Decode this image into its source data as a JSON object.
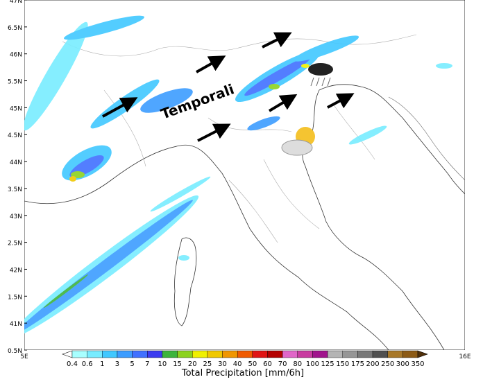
{
  "map": {
    "lat_labels": [
      "47N",
      "6.5N",
      "46N",
      "5.5N",
      "45N",
      "4.5N",
      "44N",
      "3.5N",
      "43N",
      "2.5N",
      "42N",
      "1.5N",
      "41N",
      "0.5N"
    ],
    "lon_labels": [
      "5E",
      "16E"
    ],
    "annotation": "Temporali",
    "colorbar": {
      "title": "Total Precipitation [mm/6h]",
      "labels": [
        "0.4",
        "0.6",
        "1",
        "3",
        "5",
        "7",
        "10",
        "15",
        "20",
        "25",
        "30",
        "40",
        "50",
        "60",
        "70",
        "80",
        "100",
        "125",
        "150",
        "175",
        "200",
        "250",
        "300",
        "350"
      ],
      "colors": [
        "#ffffff",
        "#a8ffff",
        "#78ecff",
        "#40c8ff",
        "#3c9cff",
        "#4070ff",
        "#3c3cf0",
        "#3cb43c",
        "#8cd21e",
        "#f0f000",
        "#f0c800",
        "#f09600",
        "#f05a00",
        "#e01414",
        "#b40000",
        "#e066c8",
        "#c83ca0",
        "#a0148c",
        "#b4b4b4",
        "#969696",
        "#787878",
        "#505050",
        "#a87828",
        "#8c5a14",
        "#6e420a",
        "#50300a"
      ]
    }
  }
}
